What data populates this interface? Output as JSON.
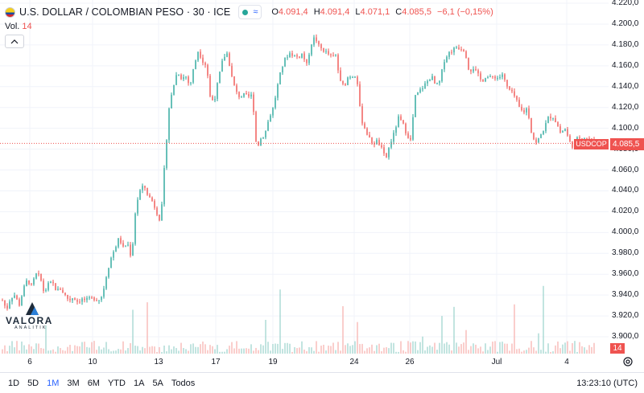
{
  "header": {
    "symbol_title": "U.S. DOLLAR / COLOMBIAN PESO · 30 · ICE",
    "wave_icon": "≈",
    "ohlc": [
      {
        "label": "O",
        "value": "4.091,4"
      },
      {
        "label": "H",
        "value": "4.091,4"
      },
      {
        "label": "L",
        "value": "4.071,1"
      },
      {
        "label": "C",
        "value": "4.085,5"
      },
      {
        "label": "",
        "value": "−6,1 (−0,15%)"
      }
    ],
    "volume_label": "Vol.",
    "volume_value": "14"
  },
  "logo": {
    "name": "VALORA",
    "sub": "ANALITIK"
  },
  "price_scale": [
    "4.220,0",
    "4.200,0",
    "4.180,0",
    "4.160,0",
    "4.140,0",
    "4.120,0",
    "4.100,0",
    "4.080,0",
    "4.060,0",
    "4.040,0",
    "4.020,0",
    "4.000,0",
    "3.980,0",
    "3.960,0",
    "3.940,0",
    "3.920,0",
    "3.900,0"
  ],
  "time_scale": [
    "6",
    "10",
    "13",
    "17",
    "19",
    "24",
    "26",
    "Jul",
    "4"
  ],
  "current": {
    "symbol": "USDCOP",
    "price": "4.085,5",
    "volume": "14"
  },
  "colors": {
    "up": "#26a69a",
    "down": "#ef5350",
    "up_vol": "#a7d8d3",
    "down_vol": "#f7b9b7",
    "grid": "#f0f3fa",
    "accent": "#2962ff"
  },
  "toolbar": {
    "ranges": [
      "1D",
      "5D",
      "1M",
      "3M",
      "6M",
      "YTD",
      "1A",
      "5A",
      "Todos"
    ],
    "active_range": "1M",
    "clock": "13:23:10 (UTC)"
  },
  "chart_data": {
    "type": "candlestick",
    "symbol": "USDCOP",
    "interval": "30",
    "ylim": [
      3890,
      4225
    ],
    "x_labels": [
      "6",
      "10",
      "13",
      "17",
      "19",
      "24",
      "26",
      "Jul",
      "4"
    ],
    "close_path": [
      3935,
      3926,
      3938,
      3940,
      3930,
      3945,
      3955,
      3948,
      3960,
      3958,
      3942,
      3950,
      3952,
      3944,
      3946,
      3940,
      3935,
      3938,
      3934,
      3936,
      3935,
      3936,
      3937,
      3935,
      3940,
      3960,
      3975,
      3985,
      3995,
      3985,
      3990,
      3975,
      4025,
      4040,
      4045,
      4035,
      4030,
      4020,
      4010,
      4070,
      4120,
      4140,
      4155,
      4148,
      4150,
      4140,
      4160,
      4175,
      4165,
      4160,
      4125,
      4130,
      4150,
      4168,
      4172,
      4150,
      4135,
      4130,
      4132,
      4130,
      4132,
      4080,
      4090,
      4095,
      4110,
      4120,
      4140,
      4158,
      4168,
      4172,
      4170,
      4168,
      4172,
      4160,
      4180,
      4188,
      4178,
      4175,
      4172,
      4168,
      4170,
      4145,
      4140,
      4150,
      4150,
      4152,
      4110,
      4100,
      4090,
      4085,
      4088,
      4080,
      4070,
      4085,
      4095,
      4110,
      4105,
      4095,
      4088,
      4130,
      4135,
      4140,
      4145,
      4150,
      4140,
      4145,
      4165,
      4172,
      4175,
      4178,
      4177,
      4175,
      4155,
      4158,
      4152,
      4145,
      4150,
      4148,
      4150,
      4148,
      4152,
      4140,
      4135,
      4130,
      4120,
      4115,
      4120,
      4095,
      4085,
      4092,
      4100,
      4110,
      4112,
      4105,
      4095,
      4100,
      4088,
      4082,
      4090,
      4092,
      4091,
      4090,
      4085.5
    ],
    "volume_max": 70,
    "last_volume": 14,
    "current_price": 4085.5
  }
}
